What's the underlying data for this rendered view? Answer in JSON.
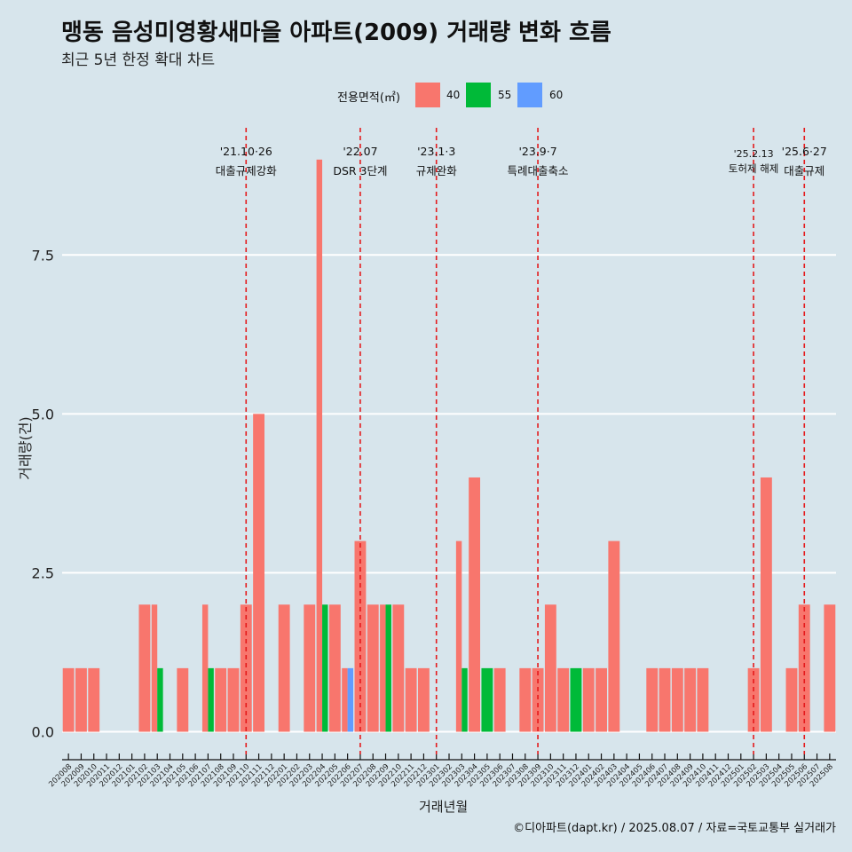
{
  "title": "맹동 음성미영황새마을 아파트(2009) 거래량 변화 흐름",
  "subtitle": "최근 5년 한정 확대 차트",
  "legend": {
    "title": "전용면적(㎡)",
    "items": [
      {
        "label": "40",
        "color": "#f8766d"
      },
      {
        "label": "55",
        "color": "#00ba38"
      },
      {
        "label": "60",
        "color": "#619cff"
      }
    ]
  },
  "caption": "©디아파트(dapt.kr) / 2025.08.07 / 자료=국토교통부 실거래가",
  "chart_data": {
    "type": "bar",
    "stacked": false,
    "grouping": "dodge",
    "xlabel": "거래년월",
    "ylabel": "거래량(건)",
    "ylim": [
      -0.3,
      9.5
    ],
    "yticks": [
      0.0,
      2.5,
      5.0,
      7.5
    ],
    "ytick_labels": [
      "0.0",
      "2.5",
      "5.0",
      "7.5"
    ],
    "grid": "horizontal",
    "legend_position": "top",
    "categories": [
      "202008",
      "202009",
      "202010",
      "202011",
      "202012",
      "202101",
      "202102",
      "202103",
      "202104",
      "202105",
      "202106",
      "202107",
      "202108",
      "202109",
      "202110",
      "202111",
      "202112",
      "202201",
      "202202",
      "202203",
      "202204",
      "202205",
      "202206",
      "202207",
      "202208",
      "202209",
      "202210",
      "202211",
      "202212",
      "202301",
      "202302",
      "202303",
      "202304",
      "202305",
      "202306",
      "202307",
      "202308",
      "202309",
      "202310",
      "202311",
      "202312",
      "202401",
      "202402",
      "202403",
      "202404",
      "202405",
      "202406",
      "202407",
      "202408",
      "202409",
      "202410",
      "202411",
      "202412",
      "202501",
      "202502",
      "202503",
      "202504",
      "202505",
      "202506",
      "202507",
      "202508"
    ],
    "series": [
      {
        "name": "40",
        "color": "#f8766d",
        "values": [
          1,
          1,
          1,
          0,
          0,
          0,
          2,
          2,
          0,
          1,
          0,
          2,
          1,
          1,
          2,
          5,
          0,
          2,
          0,
          2,
          9,
          2,
          1,
          3,
          2,
          2,
          2,
          1,
          1,
          0,
          0,
          3,
          4,
          0,
          1,
          0,
          1,
          1,
          2,
          1,
          0,
          1,
          1,
          3,
          0,
          0,
          1,
          1,
          1,
          1,
          1,
          0,
          0,
          0,
          1,
          4,
          0,
          1,
          2,
          0,
          2
        ]
      },
      {
        "name": "55",
        "color": "#00ba38",
        "values": [
          0,
          0,
          0,
          0,
          0,
          0,
          0,
          1,
          0,
          0,
          0,
          1,
          0,
          0,
          0,
          0,
          0,
          0,
          0,
          0,
          2,
          0,
          0,
          0,
          0,
          2,
          0,
          0,
          0,
          0,
          0,
          1,
          0,
          1,
          0,
          0,
          0,
          0,
          0,
          0,
          1,
          0,
          0,
          0,
          0,
          0,
          0,
          0,
          0,
          0,
          0,
          0,
          0,
          0,
          0,
          0,
          0,
          0,
          0,
          0,
          0
        ]
      },
      {
        "name": "60",
        "color": "#619cff",
        "values": [
          0,
          0,
          0,
          0,
          0,
          0,
          0,
          0,
          0,
          0,
          0,
          0,
          0,
          0,
          0,
          0,
          0,
          0,
          0,
          0,
          0,
          0,
          1,
          0,
          0,
          0,
          0,
          0,
          0,
          0,
          0,
          0,
          0,
          0,
          0,
          0,
          0,
          0,
          0,
          0,
          0,
          0,
          0,
          0,
          0,
          0,
          0,
          0,
          0,
          0,
          0,
          0,
          0,
          0,
          0,
          0,
          0,
          0,
          0,
          0,
          0
        ]
      }
    ],
    "annotations": [
      {
        "date": "'21.10·26",
        "text": "대출규제강화",
        "at": "202110"
      },
      {
        "date": "'22.07",
        "text": "DSR 3단계",
        "at": "202207"
      },
      {
        "date": "'23.1·3",
        "text": "규제완화",
        "at": "202301"
      },
      {
        "date": "'23.9·7",
        "text": "특례대출축소",
        "at": "202309"
      },
      {
        "date": "'25.2.13",
        "text": "토허제 해제",
        "at": "202502"
      },
      {
        "date": "'25.6·27",
        "text": "대출규제",
        "at": "202506"
      }
    ],
    "annotation_line_color": "#e41a1c"
  }
}
